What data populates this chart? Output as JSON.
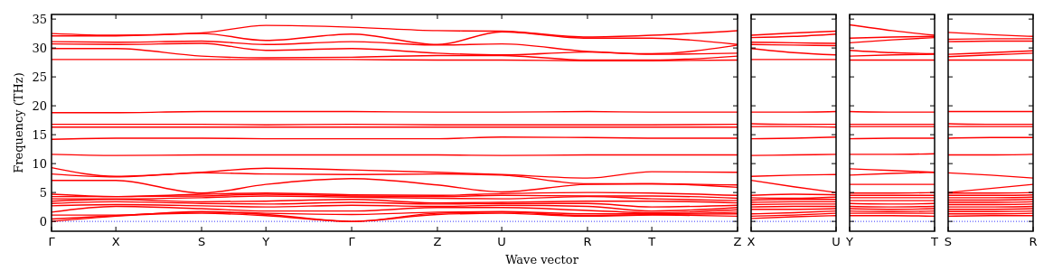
{
  "chart_data": [
    {
      "type": "line",
      "xlabel": "Wave vector",
      "ylabel": "Frequency (THz)",
      "categories": [
        "Γ",
        null,
        null,
        "X",
        null,
        null,
        null,
        "S",
        null,
        null,
        "Y",
        null,
        null,
        null,
        "Γ",
        null,
        null,
        null,
        "Z",
        null,
        null,
        "U",
        null,
        null,
        null,
        "R",
        null,
        null,
        "T",
        null,
        null,
        null,
        "Z"
      ],
      "ylim": [
        -1.7,
        35.8
      ],
      "yticks": [
        0,
        5,
        10,
        15,
        20,
        25,
        30,
        35
      ],
      "ref_lines": [
        {
          "axis": "y",
          "value": 0,
          "color": "#0000ff",
          "line_style": "dotted"
        }
      ],
      "series": [
        {
          "color": "#ff0000",
          "values": [
            32.5,
            null,
            null,
            32.2,
            null,
            null,
            null,
            32.6,
            null,
            null,
            33.9,
            null,
            null,
            null,
            33.6,
            null,
            null,
            null,
            33.0,
            null,
            null,
            32.9,
            null,
            null,
            null,
            31.9,
            null,
            null,
            32.2,
            null,
            null,
            null,
            33.0
          ]
        },
        {
          "color": "#ff0000",
          "values": [
            32.1,
            null,
            null,
            32.1,
            null,
            null,
            null,
            32.5,
            null,
            null,
            31.3,
            null,
            null,
            null,
            32.4,
            null,
            null,
            null,
            30.6,
            null,
            null,
            32.8,
            null,
            null,
            null,
            31.7,
            null,
            null,
            31.7,
            null,
            null,
            null,
            30.6
          ]
        },
        {
          "color": "#ff0000",
          "values": [
            31.1,
            null,
            null,
            31.0,
            null,
            null,
            null,
            31.2,
            null,
            null,
            30.6,
            null,
            null,
            null,
            31.1,
            null,
            null,
            null,
            30.5,
            null,
            null,
            30.7,
            null,
            null,
            null,
            29.4,
            null,
            null,
            29.0,
            null,
            null,
            null,
            30.5
          ]
        },
        {
          "color": "#ff0000",
          "values": [
            30.7,
            null,
            null,
            30.6,
            null,
            null,
            null,
            30.8,
            null,
            null,
            29.6,
            null,
            null,
            null,
            29.9,
            null,
            null,
            null,
            29.1,
            null,
            null,
            28.8,
            null,
            null,
            null,
            29.3,
            null,
            null,
            28.9,
            null,
            null,
            null,
            29.1
          ]
        },
        {
          "color": "#ff0000",
          "values": [
            29.9,
            null,
            null,
            29.9,
            null,
            null,
            null,
            28.6,
            null,
            null,
            28.3,
            null,
            null,
            null,
            28.4,
            null,
            null,
            null,
            28.7,
            null,
            null,
            28.7,
            null,
            null,
            null,
            27.9,
            null,
            null,
            27.9,
            null,
            null,
            null,
            28.6
          ]
        },
        {
          "color": "#ff0000",
          "values": [
            28.0,
            null,
            null,
            28.0,
            null,
            null,
            null,
            28.0,
            null,
            null,
            28.0,
            null,
            null,
            null,
            28.0,
            null,
            null,
            null,
            27.9,
            null,
            null,
            27.9,
            null,
            null,
            null,
            27.8,
            null,
            null,
            27.8,
            null,
            null,
            null,
            27.9
          ]
        },
        {
          "color": "#ff0000",
          "values": [
            18.8,
            null,
            null,
            18.8,
            null,
            null,
            null,
            19.0,
            null,
            null,
            19.0,
            null,
            null,
            null,
            19.0,
            null,
            null,
            null,
            18.9,
            null,
            null,
            18.9,
            null,
            null,
            null,
            19.0,
            null,
            null,
            18.9,
            null,
            null,
            null,
            18.9
          ]
        },
        {
          "color": "#ff0000",
          "values": [
            16.8,
            null,
            null,
            16.8,
            null,
            null,
            null,
            16.8,
            null,
            null,
            16.7,
            null,
            null,
            null,
            16.8,
            null,
            null,
            null,
            16.7,
            null,
            null,
            16.7,
            null,
            null,
            null,
            16.7,
            null,
            null,
            16.7,
            null,
            null,
            null,
            16.8
          ]
        },
        {
          "color": "#ff0000",
          "values": [
            16.3,
            null,
            null,
            16.3,
            null,
            null,
            null,
            16.3,
            null,
            null,
            16.3,
            null,
            null,
            null,
            16.3,
            null,
            null,
            null,
            16.3,
            null,
            null,
            16.3,
            null,
            null,
            null,
            16.3,
            null,
            null,
            16.3,
            null,
            null,
            null,
            16.3
          ]
        },
        {
          "color": "#ff0000",
          "values": [
            14.2,
            null,
            null,
            14.4,
            null,
            null,
            null,
            14.4,
            null,
            null,
            14.3,
            null,
            null,
            null,
            14.3,
            null,
            null,
            null,
            14.3,
            null,
            null,
            14.6,
            null,
            null,
            null,
            14.5,
            null,
            null,
            14.4,
            null,
            null,
            null,
            14.4
          ]
        },
        {
          "color": "#ff0000",
          "values": [
            11.6,
            null,
            null,
            11.4,
            null,
            null,
            null,
            11.5,
            null,
            null,
            11.5,
            null,
            null,
            null,
            11.5,
            null,
            null,
            null,
            11.5,
            null,
            null,
            11.4,
            null,
            null,
            null,
            11.5,
            null,
            null,
            11.5,
            null,
            null,
            null,
            11.5
          ]
        },
        {
          "color": "#ff0000",
          "values": [
            9.3,
            null,
            null,
            7.8,
            null,
            null,
            null,
            8.5,
            null,
            null,
            9.2,
            null,
            null,
            null,
            8.9,
            null,
            null,
            null,
            8.5,
            null,
            null,
            8.1,
            null,
            null,
            null,
            7.5,
            null,
            null,
            8.6,
            null,
            null,
            null,
            8.5
          ]
        },
        {
          "color": "#ff0000",
          "values": [
            8.2,
            null,
            null,
            7.7,
            null,
            null,
            null,
            8.4,
            null,
            null,
            8.2,
            null,
            null,
            null,
            8.1,
            null,
            null,
            null,
            8.2,
            null,
            null,
            8.0,
            null,
            null,
            null,
            6.5,
            null,
            null,
            6.5,
            null,
            null,
            null,
            6.3
          ]
        },
        {
          "color": "#ff0000",
          "values": [
            7.1,
            null,
            null,
            7.1,
            null,
            null,
            null,
            4.9,
            null,
            null,
            6.4,
            null,
            null,
            null,
            7.4,
            null,
            null,
            null,
            6.3,
            null,
            null,
            5.1,
            null,
            null,
            null,
            6.4,
            null,
            null,
            6.5,
            null,
            null,
            null,
            5.9
          ]
        },
        {
          "color": "#ff0000",
          "values": [
            4.7,
            null,
            null,
            4.3,
            null,
            null,
            null,
            4.7,
            null,
            null,
            4.9,
            null,
            null,
            null,
            4.6,
            null,
            null,
            null,
            4.5,
            null,
            null,
            4.8,
            null,
            null,
            null,
            5.0,
            null,
            null,
            4.9,
            null,
            null,
            null,
            4.5
          ]
        },
        {
          "color": "#ff0000",
          "values": [
            4.3,
            null,
            null,
            4.3,
            null,
            null,
            null,
            4.4,
            null,
            null,
            4.7,
            null,
            null,
            null,
            4.4,
            null,
            null,
            null,
            4.3,
            null,
            null,
            4.5,
            null,
            null,
            null,
            4.4,
            null,
            null,
            4.4,
            null,
            null,
            null,
            4.0
          ]
        },
        {
          "color": "#ff0000",
          "values": [
            3.9,
            null,
            null,
            3.9,
            null,
            null,
            null,
            4.1,
            null,
            null,
            4.4,
            null,
            null,
            null,
            4.2,
            null,
            null,
            null,
            4.0,
            null,
            null,
            3.9,
            null,
            null,
            null,
            4.3,
            null,
            null,
            3.9,
            null,
            null,
            null,
            3.6
          ]
        },
        {
          "color": "#ff0000",
          "values": [
            3.5,
            null,
            null,
            3.8,
            null,
            null,
            null,
            3.4,
            null,
            null,
            3.5,
            null,
            null,
            null,
            3.8,
            null,
            null,
            null,
            3.2,
            null,
            null,
            3.3,
            null,
            null,
            null,
            3.5,
            null,
            null,
            3.5,
            null,
            null,
            null,
            3.2
          ]
        },
        {
          "color": "#ff0000",
          "values": [
            3.1,
            null,
            null,
            3.4,
            null,
            null,
            null,
            3.1,
            null,
            null,
            3.0,
            null,
            null,
            null,
            3.3,
            null,
            null,
            null,
            3.0,
            null,
            null,
            3.1,
            null,
            null,
            null,
            3.1,
            null,
            null,
            2.5,
            null,
            null,
            null,
            2.8
          ]
        },
        {
          "color": "#ff0000",
          "values": [
            2.7,
            null,
            null,
            2.9,
            null,
            null,
            null,
            2.7,
            null,
            null,
            2.5,
            null,
            null,
            null,
            2.8,
            null,
            null,
            null,
            2.6,
            null,
            null,
            2.8,
            null,
            null,
            null,
            2.6,
            null,
            null,
            1.8,
            null,
            null,
            null,
            2.4
          ]
        },
        {
          "color": "#ff0000",
          "values": [
            1.6,
            null,
            null,
            2.6,
            null,
            null,
            null,
            2.2,
            null,
            null,
            1.8,
            null,
            null,
            null,
            1.8,
            null,
            null,
            null,
            2.4,
            null,
            null,
            2.4,
            null,
            null,
            null,
            1.9,
            null,
            null,
            1.5,
            null,
            null,
            null,
            2.0
          ]
        },
        {
          "color": "#ff0000",
          "values": [
            1.1,
            null,
            null,
            1.1,
            null,
            null,
            null,
            1.7,
            null,
            null,
            1.4,
            null,
            null,
            null,
            1.2,
            null,
            null,
            null,
            1.6,
            null,
            null,
            1.7,
            null,
            null,
            null,
            1.3,
            null,
            null,
            1.3,
            null,
            null,
            null,
            1.6
          ]
        },
        {
          "color": "#ff0000",
          "values": [
            0.4,
            null,
            null,
            1.0,
            null,
            null,
            null,
            1.6,
            null,
            null,
            1.2,
            null,
            null,
            null,
            0,
            null,
            null,
            null,
            1.4,
            null,
            null,
            1.6,
            null,
            null,
            null,
            1.0,
            null,
            null,
            1.2,
            null,
            null,
            null,
            1.3
          ]
        },
        {
          "color": "#ff0000",
          "values": [
            0,
            null,
            null,
            0.9,
            null,
            null,
            null,
            1.4,
            null,
            null,
            1.0,
            null,
            null,
            null,
            0,
            null,
            null,
            null,
            1.2,
            null,
            null,
            1.4,
            null,
            null,
            null,
            0.9,
            null,
            null,
            1.1,
            null,
            null,
            null,
            0.9
          ]
        }
      ]
    },
    {
      "type": "line",
      "categories": [
        "X",
        null,
        "U"
      ],
      "ylim": [
        -1.7,
        35.8
      ],
      "yticks": [
        0,
        5,
        10,
        15,
        20,
        25,
        30,
        35
      ],
      "tick_labels": "x",
      "ref_lines": [
        {
          "axis": "y",
          "value": 0,
          "color": "#0000ff",
          "line_style": "dotted"
        }
      ],
      "series": [
        {
          "color": "#ff0000",
          "values": [
            32.2,
            32.6,
            32.9
          ]
        },
        {
          "color": "#ff0000",
          "values": [
            31.8,
            32.0,
            32.4
          ]
        },
        {
          "color": "#ff0000",
          "values": [
            31.0,
            30.9,
            30.8
          ]
        },
        {
          "color": "#ff0000",
          "values": [
            30.6,
            30.5,
            30.4
          ]
        },
        {
          "color": "#ff0000",
          "values": [
            29.9,
            29.2,
            28.8
          ]
        },
        {
          "color": "#ff0000",
          "values": [
            28.0,
            28.0,
            28.0
          ]
        },
        {
          "color": "#ff0000",
          "values": [
            18.9,
            18.9,
            19.0
          ]
        },
        {
          "color": "#ff0000",
          "values": [
            16.9,
            16.8,
            16.8
          ]
        },
        {
          "color": "#ff0000",
          "values": [
            16.4,
            16.4,
            16.3
          ]
        },
        {
          "color": "#ff0000",
          "values": [
            14.3,
            14.4,
            14.6
          ]
        },
        {
          "color": "#ff0000",
          "values": [
            11.4,
            11.5,
            11.6
          ]
        },
        {
          "color": "#ff0000",
          "values": [
            7.8,
            8.0,
            8.1
          ]
        },
        {
          "color": "#ff0000",
          "values": [
            7.1,
            6.0,
            5.0
          ]
        },
        {
          "color": "#ff0000",
          "values": [
            4.5,
            4.7,
            4.6
          ]
        },
        {
          "color": "#ff0000",
          "values": [
            4.1,
            4.0,
            4.2
          ]
        },
        {
          "color": "#ff0000",
          "values": [
            3.7,
            3.8,
            3.8
          ]
        },
        {
          "color": "#ff0000",
          "values": [
            3.3,
            3.4,
            3.4
          ]
        },
        {
          "color": "#ff0000",
          "values": [
            2.9,
            3.0,
            3.0
          ]
        },
        {
          "color": "#ff0000",
          "values": [
            2.5,
            2.6,
            2.6
          ]
        },
        {
          "color": "#ff0000",
          "values": [
            2.1,
            2.1,
            2.2
          ]
        },
        {
          "color": "#ff0000",
          "values": [
            1.3,
            1.5,
            1.8
          ]
        },
        {
          "color": "#ff0000",
          "values": [
            0.9,
            1.1,
            1.4
          ]
        },
        {
          "color": "#ff0000",
          "values": [
            0.5,
            0.8,
            1.0
          ]
        }
      ]
    },
    {
      "type": "line",
      "categories": [
        "Y",
        null,
        "T"
      ],
      "ylim": [
        -1.7,
        35.8
      ],
      "yticks": [
        0,
        5,
        10,
        15,
        20,
        25,
        30,
        35
      ],
      "tick_labels": "x",
      "ref_lines": [
        {
          "axis": "y",
          "value": 0,
          "color": "#0000ff",
          "line_style": "dotted"
        }
      ],
      "series": [
        {
          "color": "#ff0000",
          "values": [
            34.0,
            33.0,
            32.2
          ]
        },
        {
          "color": "#ff0000",
          "values": [
            31.7,
            31.9,
            32.0
          ]
        },
        {
          "color": "#ff0000",
          "values": [
            30.9,
            31.4,
            31.8
          ]
        },
        {
          "color": "#ff0000",
          "values": [
            29.6,
            29.2,
            29.0
          ]
        },
        {
          "color": "#ff0000",
          "values": [
            28.6,
            28.8,
            28.9
          ]
        },
        {
          "color": "#ff0000",
          "values": [
            27.9,
            27.9,
            27.9
          ]
        },
        {
          "color": "#ff0000",
          "values": [
            19.0,
            18.9,
            18.9
          ]
        },
        {
          "color": "#ff0000",
          "values": [
            16.8,
            16.8,
            16.8
          ]
        },
        {
          "color": "#ff0000",
          "values": [
            16.4,
            16.4,
            16.4
          ]
        },
        {
          "color": "#ff0000",
          "values": [
            14.3,
            14.4,
            14.4
          ]
        },
        {
          "color": "#ff0000",
          "values": [
            11.6,
            11.6,
            11.7
          ]
        },
        {
          "color": "#ff0000",
          "values": [
            9.1,
            8.8,
            8.5
          ]
        },
        {
          "color": "#ff0000",
          "values": [
            8.0,
            8.3,
            8.5
          ]
        },
        {
          "color": "#ff0000",
          "values": [
            6.4,
            6.4,
            6.4
          ]
        },
        {
          "color": "#ff0000",
          "values": [
            4.9,
            4.9,
            5.0
          ]
        },
        {
          "color": "#ff0000",
          "values": [
            4.5,
            4.5,
            4.5
          ]
        },
        {
          "color": "#ff0000",
          "values": [
            4.1,
            4.1,
            4.1
          ]
        },
        {
          "color": "#ff0000",
          "values": [
            3.6,
            3.6,
            3.6
          ]
        },
        {
          "color": "#ff0000",
          "values": [
            3.1,
            3.0,
            3.1
          ]
        },
        {
          "color": "#ff0000",
          "values": [
            2.6,
            2.5,
            2.6
          ]
        },
        {
          "color": "#ff0000",
          "values": [
            2.2,
            2.1,
            2.2
          ]
        },
        {
          "color": "#ff0000",
          "values": [
            1.8,
            1.7,
            1.8
          ]
        },
        {
          "color": "#ff0000",
          "values": [
            1.4,
            1.4,
            1.4
          ]
        },
        {
          "color": "#ff0000",
          "values": [
            1.0,
            1.0,
            0.9
          ]
        }
      ]
    },
    {
      "type": "line",
      "categories": [
        "S",
        null,
        "R"
      ],
      "ylim": [
        -1.7,
        35.8
      ],
      "yticks": [
        0,
        5,
        10,
        15,
        20,
        25,
        30,
        35
      ],
      "tick_labels": "x",
      "ref_lines": [
        {
          "axis": "y",
          "value": 0,
          "color": "#0000ff",
          "line_style": "dotted"
        }
      ],
      "series": [
        {
          "color": "#ff0000",
          "values": [
            32.7,
            32.3,
            32.0
          ]
        },
        {
          "color": "#ff0000",
          "values": [
            31.5,
            31.6,
            31.6
          ]
        },
        {
          "color": "#ff0000",
          "values": [
            31.1,
            31.2,
            31.2
          ]
        },
        {
          "color": "#ff0000",
          "values": [
            28.9,
            29.2,
            29.5
          ]
        },
        {
          "color": "#ff0000",
          "values": [
            28.5,
            28.8,
            29.1
          ]
        },
        {
          "color": "#ff0000",
          "values": [
            27.9,
            27.9,
            27.9
          ]
        },
        {
          "color": "#ff0000",
          "values": [
            19.0,
            19.0,
            19.0
          ]
        },
        {
          "color": "#ff0000",
          "values": [
            16.9,
            16.8,
            16.8
          ]
        },
        {
          "color": "#ff0000",
          "values": [
            16.4,
            16.4,
            16.4
          ]
        },
        {
          "color": "#ff0000",
          "values": [
            14.4,
            14.5,
            14.5
          ]
        },
        {
          "color": "#ff0000",
          "values": [
            11.5,
            11.5,
            11.6
          ]
        },
        {
          "color": "#ff0000",
          "values": [
            8.4,
            8.0,
            7.5
          ]
        },
        {
          "color": "#ff0000",
          "values": [
            5.0,
            5.7,
            6.4
          ]
        },
        {
          "color": "#ff0000",
          "values": [
            4.9,
            4.9,
            5.0
          ]
        },
        {
          "color": "#ff0000",
          "values": [
            4.5,
            4.5,
            4.6
          ]
        },
        {
          "color": "#ff0000",
          "values": [
            4.1,
            4.1,
            4.2
          ]
        },
        {
          "color": "#ff0000",
          "values": [
            3.7,
            3.7,
            3.8
          ]
        },
        {
          "color": "#ff0000",
          "values": [
            3.3,
            3.3,
            3.4
          ]
        },
        {
          "color": "#ff0000",
          "values": [
            2.9,
            2.9,
            3.0
          ]
        },
        {
          "color": "#ff0000",
          "values": [
            2.5,
            2.5,
            2.6
          ]
        },
        {
          "color": "#ff0000",
          "values": [
            2.1,
            2.1,
            2.2
          ]
        },
        {
          "color": "#ff0000",
          "values": [
            1.7,
            1.7,
            1.8
          ]
        },
        {
          "color": "#ff0000",
          "values": [
            1.3,
            1.3,
            1.4
          ]
        },
        {
          "color": "#ff0000",
          "values": [
            0.9,
            1.0,
            1.0
          ]
        }
      ]
    }
  ]
}
